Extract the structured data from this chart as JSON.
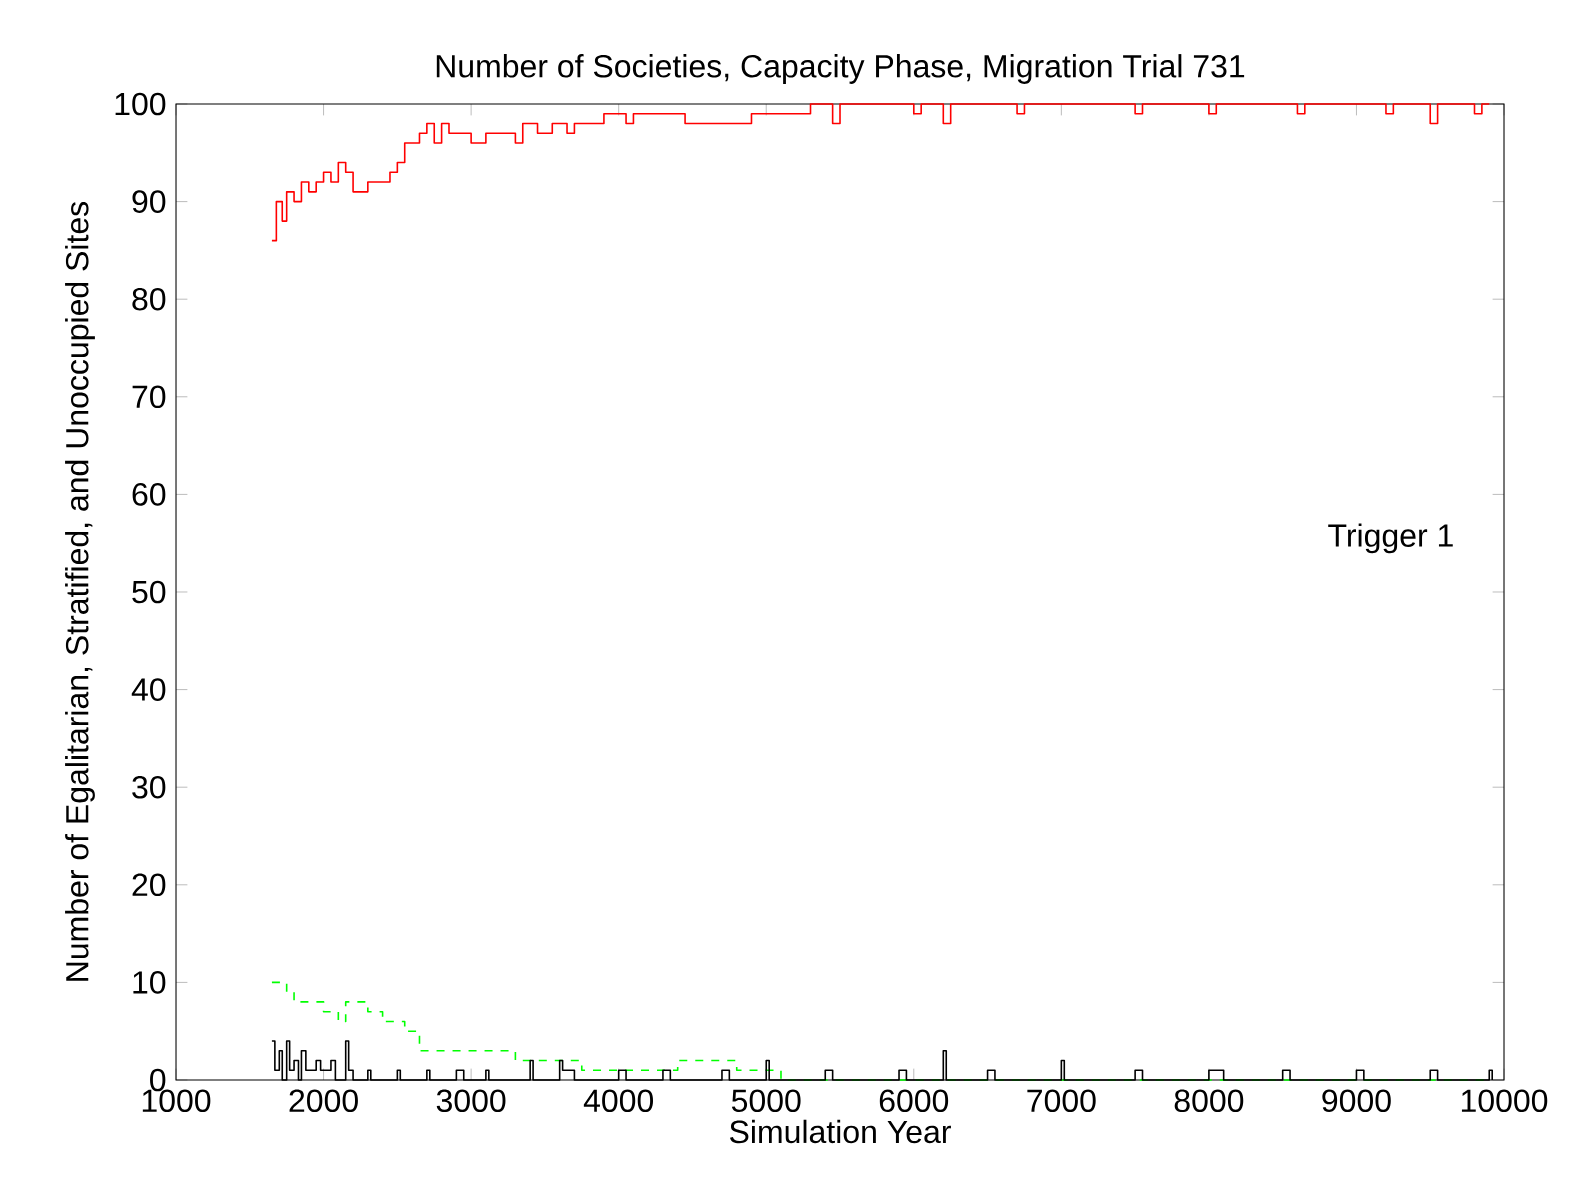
{
  "chart_data": {
    "type": "step",
    "title": "Number of Societies, Capacity Phase, Migration Trial 731",
    "xlabel": "Simulation Year",
    "ylabel": "Number of Egalitarian, Stratified, and Unoccupied Sites",
    "xlim": [
      1000,
      10000
    ],
    "ylim": [
      0,
      100
    ],
    "xticks": [
      1000,
      2000,
      3000,
      4000,
      5000,
      6000,
      7000,
      8000,
      9000,
      10000
    ],
    "yticks": [
      0,
      10,
      20,
      30,
      40,
      50,
      60,
      70,
      80,
      90,
      100
    ],
    "grid": false,
    "annotations": [
      "Trigger 1"
    ],
    "series": [
      {
        "color": "#ff0000",
        "line_style": "solid",
        "x": [
          1650,
          1680,
          1720,
          1750,
          1800,
          1850,
          1900,
          1950,
          2000,
          2050,
          2100,
          2150,
          2200,
          2300,
          2450,
          2500,
          2550,
          2650,
          2700,
          2750,
          2800,
          2850,
          3000,
          3100,
          3300,
          3350,
          3450,
          3550,
          3650,
          3700,
          3900,
          4050,
          4100,
          4450,
          4900,
          5300,
          5450,
          5500,
          6000,
          6050,
          6200,
          6250,
          6700,
          6750,
          7500,
          7550,
          8000,
          8050,
          8600,
          8650,
          9200,
          9250,
          9500,
          9550,
          9800,
          9850,
          9900
        ],
        "values": [
          86,
          90,
          88,
          91,
          90,
          92,
          91,
          92,
          93,
          92,
          94,
          93,
          91,
          92,
          93,
          94,
          96,
          97,
          98,
          96,
          98,
          97,
          96,
          97,
          96,
          98,
          97,
          98,
          97,
          98,
          99,
          98,
          99,
          98,
          99,
          100,
          98,
          100,
          99,
          100,
          98,
          100,
          99,
          100,
          99,
          100,
          99,
          100,
          99,
          100,
          99,
          100,
          98,
          100,
          99,
          100,
          100
        ]
      },
      {
        "color": "#00ff00",
        "line_style": "dashed",
        "x": [
          1650,
          1750,
          1800,
          2000,
          2100,
          2150,
          2300,
          2400,
          2550,
          2650,
          3300,
          3750,
          4400,
          4800,
          5100,
          9900
        ],
        "values": [
          10,
          9,
          8,
          7,
          6,
          8,
          7,
          6,
          5,
          3,
          2,
          1,
          2,
          1,
          0,
          0
        ]
      },
      {
        "color": "#000000",
        "line_style": "solid",
        "x": [
          1650,
          1670,
          1700,
          1720,
          1750,
          1770,
          1800,
          1830,
          1850,
          1880,
          1950,
          1980,
          2050,
          2080,
          2150,
          2170,
          2200,
          2300,
          2320,
          2500,
          2520,
          2700,
          2720,
          2900,
          2950,
          3100,
          3120,
          3400,
          3420,
          3600,
          3620,
          3700,
          4000,
          4050,
          4300,
          4350,
          4700,
          4750,
          5000,
          5020,
          5400,
          5450,
          5900,
          5950,
          6200,
          6220,
          6500,
          6550,
          7000,
          7020,
          7500,
          7550,
          8000,
          8100,
          8500,
          8550,
          9000,
          9050,
          9500,
          9550,
          9900,
          9920
        ],
        "values": [
          4,
          1,
          3,
          0,
          4,
          1,
          2,
          0,
          3,
          1,
          2,
          1,
          2,
          0,
          4,
          1,
          0,
          1,
          0,
          1,
          0,
          1,
          0,
          1,
          0,
          1,
          0,
          2,
          0,
          2,
          1,
          0,
          1,
          0,
          1,
          0,
          1,
          0,
          2,
          0,
          1,
          0,
          1,
          0,
          3,
          0,
          1,
          0,
          2,
          0,
          1,
          0,
          1,
          0,
          1,
          0,
          1,
          0,
          1,
          0,
          1,
          0
        ]
      }
    ]
  }
}
